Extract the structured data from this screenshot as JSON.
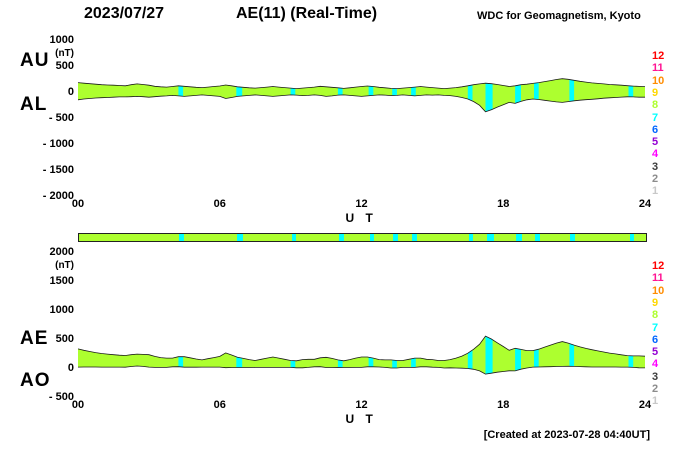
{
  "header": {
    "date": "2023/07/27",
    "title": "AE(11) (Real-Time)",
    "credit": "WDC for Geomagnetism, Kyoto"
  },
  "footer": {
    "created": "[Created at 2023-07-28 04:40UT]"
  },
  "station_count_legend": [
    {
      "label": "12",
      "color": "#ff0000"
    },
    {
      "label": "11",
      "color": "#ff1493"
    },
    {
      "label": "10",
      "color": "#ff8c00"
    },
    {
      "label": "9",
      "color": "#ffd700"
    },
    {
      "label": "8",
      "color": "#adff2f"
    },
    {
      "label": "7",
      "color": "#00ffff"
    },
    {
      "label": "6",
      "color": "#0066ff"
    },
    {
      "label": "5",
      "color": "#9400d3"
    },
    {
      "label": "4",
      "color": "#ff00ff"
    },
    {
      "label": "3",
      "color": "#3c3c3c"
    },
    {
      "label": "2",
      "color": "#8c8c8c"
    },
    {
      "label": "1",
      "color": "#c8c8c8"
    }
  ],
  "chart_data": {
    "type": "area",
    "x_start_hour": 0,
    "x_end_hour": 24,
    "xlabel": "U T",
    "xticks": [
      {
        "label": "00",
        "v": 0
      },
      {
        "label": "06",
        "v": 6
      },
      {
        "label": "12",
        "v": 12
      },
      {
        "label": "18",
        "v": 18
      },
      {
        "label": "24",
        "v": 24
      }
    ],
    "colors": {
      "band_fill": "#adff2f",
      "gap_fill": "#00ffff",
      "outline": "#1a1a1a"
    },
    "gap_intervals_hours": [
      [
        4.25,
        4.45
      ],
      [
        6.7,
        6.95
      ],
      [
        9.0,
        9.2
      ],
      [
        11.0,
        11.2
      ],
      [
        12.3,
        12.5
      ],
      [
        13.3,
        13.5
      ],
      [
        14.1,
        14.3
      ],
      [
        16.5,
        16.7
      ],
      [
        17.25,
        17.55
      ],
      [
        18.5,
        18.75
      ],
      [
        19.3,
        19.5
      ],
      [
        20.8,
        21.0
      ],
      [
        23.3,
        23.5
      ]
    ],
    "status_bar": {
      "base_color": "#adff2f",
      "gap_color": "#00ffff"
    },
    "panels": [
      {
        "id": "au-al",
        "unit": "(nT)",
        "ylim_top": 1000,
        "ylim_bottom": -2000,
        "yticks": [
          {
            "label": "1000",
            "v": 1000
          },
          {
            "label": "500",
            "v": 500
          },
          {
            "label": "0",
            "v": 0
          },
          {
            "label": "- 500",
            "v": -500
          },
          {
            "label": "- 1000",
            "v": -1000
          },
          {
            "label": "- 1500",
            "v": -1500
          },
          {
            "label": "- 2000",
            "v": -2000
          }
        ],
        "series": [
          {
            "name": "AU",
            "values": [
              180,
              170,
              160,
              150,
              140,
              135,
              130,
              125,
              120,
              140,
              155,
              145,
              130,
              110,
              100,
              95,
              105,
              120,
              110,
              100,
              90,
              85,
              95,
              105,
              115,
              135,
              120,
              100,
              90,
              80,
              75,
              85,
              95,
              105,
              95,
              85,
              75,
              65,
              75,
              85,
              95,
              110,
              100,
              90,
              80,
              70,
              80,
              95,
              105,
              115,
              105,
              90,
              80,
              70,
              65,
              75,
              85,
              95,
              105,
              95,
              85,
              75,
              65,
              75,
              85,
              100,
              120,
              140,
              155,
              170,
              160,
              145,
              125,
              105,
              120,
              140,
              150,
              165,
              180,
              200,
              220,
              240,
              255,
              245,
              225,
              205,
              190,
              175,
              165,
              155,
              145,
              138,
              130,
              122,
              114,
              108,
              104
            ]
          },
          {
            "name": "AL",
            "values": [
              -150,
              -135,
              -125,
              -115,
              -110,
              -105,
              -100,
              -95,
              -95,
              -90,
              -85,
              -90,
              -100,
              -90,
              -80,
              -75,
              -65,
              -75,
              -85,
              -75,
              -65,
              -55,
              -65,
              -75,
              -85,
              -125,
              -105,
              -85,
              -75,
              -65,
              -55,
              -65,
              -75,
              -85,
              -75,
              -65,
              -55,
              -60,
              -70,
              -65,
              -55,
              -65,
              -85,
              -75,
              -60,
              -55,
              -65,
              -75,
              -85,
              -75,
              -65,
              -55,
              -60,
              -70,
              -65,
              -55,
              -65,
              -75,
              -65,
              -55,
              -60,
              -55,
              -65,
              -70,
              -85,
              -105,
              -135,
              -185,
              -255,
              -380,
              -340,
              -290,
              -245,
              -200,
              -220,
              -180,
              -150,
              -135,
              -145,
              -160,
              -175,
              -190,
              -200,
              -185,
              -170,
              -158,
              -148,
              -140,
              -130,
              -120,
              -112,
              -105,
              -98,
              -92,
              -95,
              -100,
              -100
            ]
          }
        ]
      },
      {
        "id": "ae-ao",
        "unit": "(nT)",
        "ylim_top": 2000,
        "ylim_bottom": -500,
        "yticks": [
          {
            "label": "2000",
            "v": 2000
          },
          {
            "label": "1500",
            "v": 1500
          },
          {
            "label": "1000",
            "v": 1000
          },
          {
            "label": "500",
            "v": 500
          },
          {
            "label": "0",
            "v": 0
          },
          {
            "label": "- 500",
            "v": -500
          }
        ],
        "series": [
          {
            "name": "AE",
            "values": [
              330,
              305,
              285,
              265,
              250,
              240,
              230,
              220,
              215,
              230,
              240,
              235,
              230,
              200,
              180,
              170,
              170,
              195,
              195,
              175,
              155,
              140,
              160,
              180,
              200,
              260,
              225,
              185,
              165,
              145,
              130,
              150,
              170,
              190,
              170,
              150,
              130,
              125,
              145,
              150,
              150,
              175,
              185,
              165,
              140,
              125,
              145,
              170,
              190,
              190,
              170,
              145,
              140,
              140,
              130,
              130,
              150,
              170,
              170,
              150,
              145,
              130,
              130,
              145,
              170,
              205,
              255,
              325,
              410,
              550,
              500,
              435,
              370,
              305,
              340,
              320,
              300,
              300,
              325,
              360,
              395,
              430,
              455,
              430,
              395,
              363,
              338,
              315,
              295,
              275,
              257,
              243,
              228,
              214,
              209,
              208,
              204
            ]
          },
          {
            "name": "AO",
            "values": [
              15,
              18,
              18,
              18,
              15,
              15,
              15,
              15,
              13,
              25,
              35,
              28,
              15,
              10,
              10,
              10,
              20,
              23,
              13,
              13,
              13,
              15,
              15,
              15,
              15,
              5,
              8,
              8,
              8,
              8,
              10,
              10,
              10,
              10,
              10,
              10,
              10,
              3,
              3,
              10,
              20,
              23,
              8,
              8,
              10,
              8,
              8,
              10,
              10,
              20,
              20,
              18,
              10,
              0,
              0,
              10,
              10,
              10,
              20,
              20,
              13,
              10,
              0,
              3,
              0,
              -3,
              -8,
              -23,
              -50,
              -105,
              -90,
              -73,
              -60,
              -48,
              -50,
              -20,
              0,
              15,
              18,
              20,
              23,
              25,
              28,
              30,
              28,
              24,
              21,
              18,
              18,
              18,
              17,
              17,
              16,
              15,
              10,
              4,
              2
            ]
          }
        ]
      }
    ]
  }
}
